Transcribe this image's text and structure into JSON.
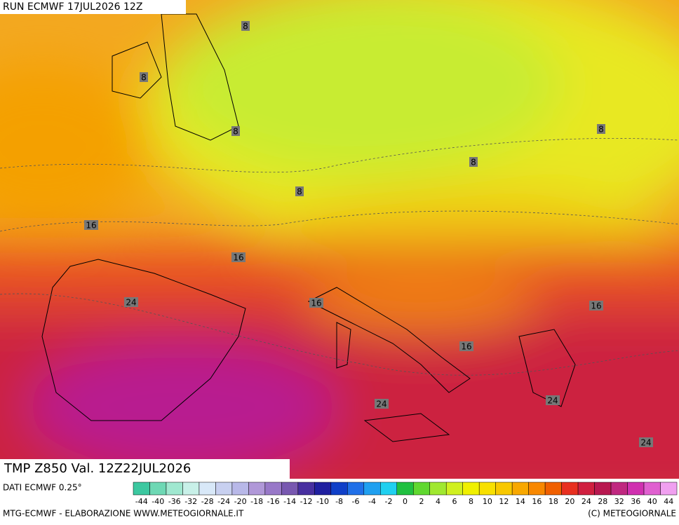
{
  "header": {
    "run": "RUN ECMWF 17JUL2026 12Z"
  },
  "map": {
    "field_label": "TMP Z850 Val. 12Z22JUL2026",
    "contour_labels": [
      8,
      8,
      8,
      8,
      8,
      8,
      16,
      16,
      16,
      16,
      16,
      24,
      24,
      24,
      24
    ]
  },
  "colorbar": {
    "source": "DATI ECMWF 0.25°",
    "labels": [
      -44,
      -40,
      -36,
      -32,
      -28,
      -24,
      -20,
      -18,
      -16,
      -14,
      -12,
      -10,
      -8,
      -6,
      -4,
      -2,
      0,
      2,
      4,
      6,
      8,
      10,
      12,
      14,
      16,
      18,
      20,
      24,
      28,
      32,
      36,
      40,
      44
    ],
    "colors": [
      "#3cc8a0",
      "#6ed8b4",
      "#a0e8d0",
      "#c8f0e8",
      "#d8e8f8",
      "#c8d0f0",
      "#b8b8e8",
      "#b098d8",
      "#9878c8",
      "#7858b0",
      "#4830a0",
      "#2020a0",
      "#1040c8",
      "#2070e8",
      "#20a0f0",
      "#20d0f0",
      "#20c040",
      "#60d830",
      "#a0e830",
      "#d0f020",
      "#f0f000",
      "#f8e000",
      "#f8c800",
      "#f8a800",
      "#f88800",
      "#f06000",
      "#e83020",
      "#d02040",
      "#b81850",
      "#c02880",
      "#d030b0",
      "#e060d0",
      "#f0a0f0"
    ]
  },
  "footer": {
    "credits": "MTG-ECMWF - ELABORAZIONE WWW.METEOGIORNALE.IT",
    "copyright": "(C) METEOGIORNALE"
  }
}
